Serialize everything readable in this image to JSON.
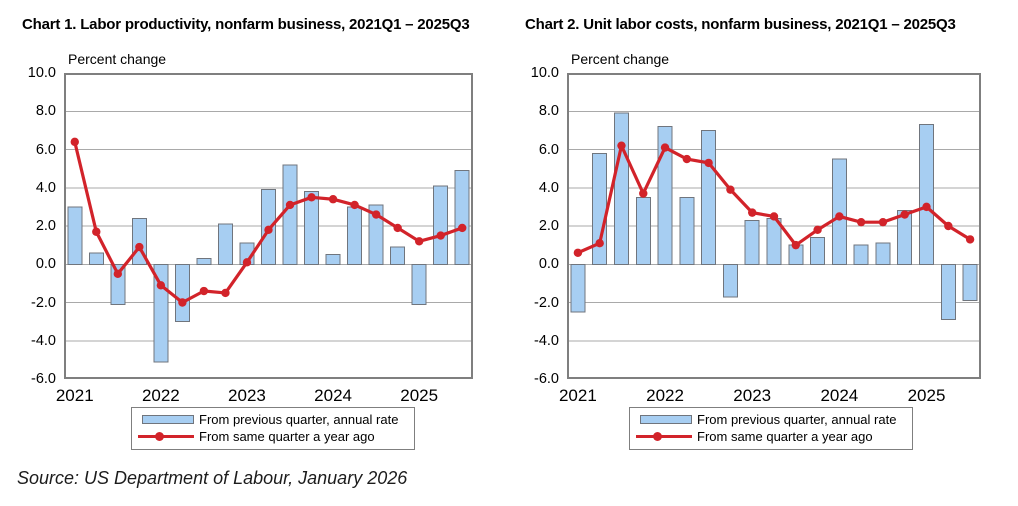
{
  "source_note": "Source: US Department of Labour, January 2026",
  "colors": {
    "bar_fill": "#A7CEF2",
    "bar_border": "#70757D",
    "line": "#D2232A",
    "grid": "#A9A9A9",
    "plot_border": "#7F7F7F",
    "text": "#000000"
  },
  "chart_data": [
    {
      "type": "bar",
      "title": "Chart 1. Labor productivity, nonfarm business, 2021Q1 – 2025Q3",
      "ylabel": "Percent change",
      "ylim": [
        -6.0,
        10.0
      ],
      "ytick_step": 2.0,
      "grid": true,
      "legend_position": "bottom",
      "yticks": [
        "10.0",
        "8.0",
        "6.0",
        "4.0",
        "2.0",
        "0.0",
        "-2.0",
        "-4.0",
        "-6.0"
      ],
      "x_years": [
        "2021",
        "2022",
        "2023",
        "2024",
        "2025"
      ],
      "categories": [
        "2021Q1",
        "2021Q2",
        "2021Q3",
        "2021Q4",
        "2022Q1",
        "2022Q2",
        "2022Q3",
        "2022Q4",
        "2023Q1",
        "2023Q2",
        "2023Q3",
        "2023Q4",
        "2024Q1",
        "2024Q2",
        "2024Q3",
        "2024Q4",
        "2025Q1",
        "2025Q2",
        "2025Q3"
      ],
      "series": [
        {
          "name": "From previous quarter, annual rate",
          "type": "bar",
          "values": [
            3.0,
            0.6,
            -2.1,
            2.4,
            -5.1,
            -3.0,
            0.3,
            2.1,
            1.1,
            3.9,
            5.2,
            3.8,
            0.5,
            3.0,
            3.1,
            0.9,
            -2.1,
            4.1,
            4.9
          ]
        },
        {
          "name": "From same quarter a year ago",
          "type": "line",
          "values": [
            6.4,
            1.7,
            -0.5,
            0.9,
            -1.1,
            -2.0,
            -1.4,
            -1.5,
            0.1,
            1.8,
            3.1,
            3.5,
            3.4,
            3.1,
            2.6,
            1.9,
            1.2,
            1.5,
            1.9
          ]
        }
      ]
    },
    {
      "type": "bar",
      "title": "Chart 2. Unit labor costs, nonfarm business, 2021Q1 – 2025Q3",
      "ylabel": "Percent change",
      "ylim": [
        -6.0,
        10.0
      ],
      "ytick_step": 2.0,
      "grid": true,
      "legend_position": "bottom",
      "yticks": [
        "10.0",
        "8.0",
        "6.0",
        "4.0",
        "2.0",
        "0.0",
        "-2.0",
        "-4.0",
        "-6.0"
      ],
      "x_years": [
        "2021",
        "2022",
        "2023",
        "2024",
        "2025"
      ],
      "categories": [
        "2021Q1",
        "2021Q2",
        "2021Q3",
        "2021Q4",
        "2022Q1",
        "2022Q2",
        "2022Q3",
        "2022Q4",
        "2023Q1",
        "2023Q2",
        "2023Q3",
        "2023Q4",
        "2024Q1",
        "2024Q2",
        "2024Q3",
        "2024Q4",
        "2025Q1",
        "2025Q2",
        "2025Q3"
      ],
      "series": [
        {
          "name": "From previous quarter, annual rate",
          "type": "bar",
          "values": [
            -2.5,
            5.8,
            7.9,
            3.5,
            7.2,
            3.5,
            7.0,
            -1.7,
            2.3,
            2.4,
            1.0,
            1.4,
            5.5,
            1.0,
            1.1,
            2.8,
            7.3,
            -2.9,
            -1.9
          ]
        },
        {
          "name": "From same quarter a year ago",
          "type": "line",
          "values": [
            0.6,
            1.1,
            6.2,
            3.7,
            6.1,
            5.5,
            5.3,
            3.9,
            2.7,
            2.5,
            1.0,
            1.8,
            2.5,
            2.2,
            2.2,
            2.6,
            3.0,
            2.0,
            1.3
          ]
        }
      ]
    }
  ]
}
